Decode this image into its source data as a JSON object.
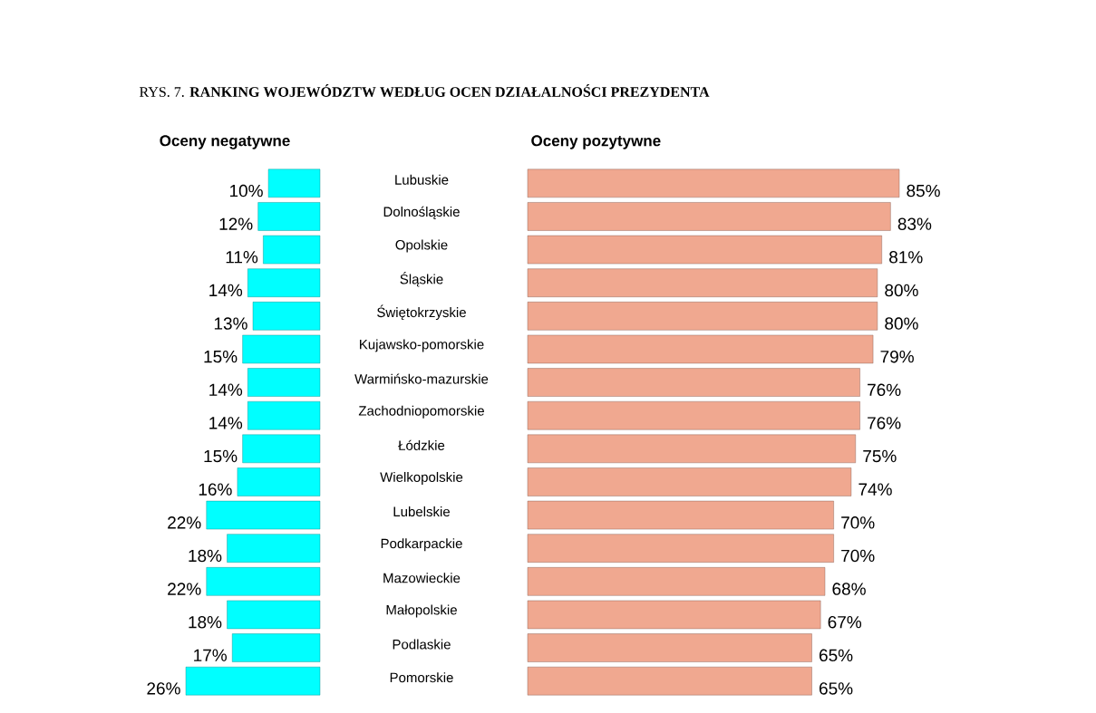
{
  "chart_data": [
    {
      "type": "bar",
      "orientation": "horizontal",
      "title": "RYS. 7. **RANKING WOJEWÓDZTW WEDŁUG OCEN DZIAŁALNOŚCI PREZYDENTA**",
      "subtitle": "Oceny negatywne",
      "categories": [
        "Lubuskie",
        "Dolnośląskie",
        "Opolskie",
        "Śląskie",
        "Świętokrzyskie",
        "Kujawsko-pomorskie",
        "Warmińsko-mazurskie",
        "Zachodniopomorskie",
        "Łódzkie",
        "Wielkopolskie",
        "Lubelskie",
        "Podkarpackie",
        "Mazowieckie",
        "Małopolskie",
        "Podlaskie",
        "Pomorskie"
      ],
      "values": [
        10,
        12,
        11,
        14,
        13,
        15,
        14,
        14,
        15,
        16,
        22,
        18,
        22,
        18,
        17,
        26
      ],
      "value_labels": [
        "10%",
        "12%",
        "11%",
        "14%",
        "13%",
        "15%",
        "14%",
        "14%",
        "15%",
        "16%",
        "22%",
        "18%",
        "22%",
        "18%",
        "17%",
        "26%"
      ],
      "color": "#00ffff",
      "tick_labels": "y"
    },
    {
      "type": "bar",
      "orientation": "horizontal",
      "title": "Oceny pozytywne",
      "categories": [
        null,
        null,
        null,
        null,
        null,
        null,
        null,
        null,
        null,
        null,
        null,
        null,
        null,
        null,
        null,
        null
      ],
      "values": [
        85,
        83,
        81,
        80,
        80,
        79,
        76,
        76,
        75,
        74,
        70,
        70,
        68,
        67,
        65,
        65
      ],
      "value_labels": [
        "85%",
        "83%",
        "81%",
        "80%",
        "80%",
        "79%",
        "76%",
        "76%",
        "75%",
        "74%",
        "70%",
        "70%",
        "68%",
        "67%",
        "65%",
        "65%"
      ],
      "color": "#f0a890",
      "tick_labels": false
    }
  ]
}
